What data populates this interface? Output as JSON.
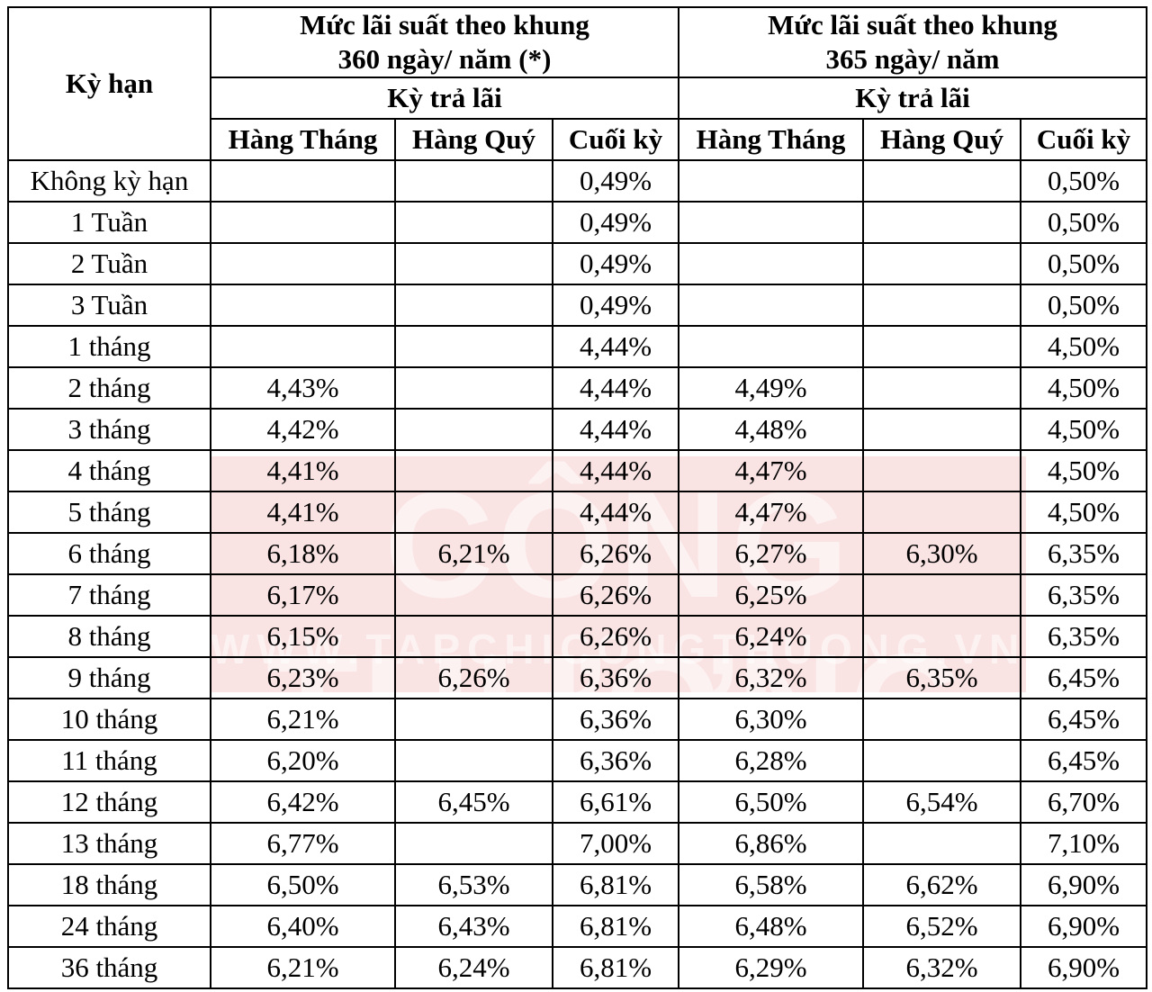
{
  "header": {
    "term": "Kỳ hạn",
    "group_360_line1": "Mức lãi suất theo khung",
    "group_360_line2": "360 ngày/ năm (*)",
    "group_365_line1": "Mức lãi suất theo khung",
    "group_365_line2": "365 ngày/ năm",
    "payment_period": "Kỳ trả lãi",
    "columns": [
      "Hàng Tháng",
      "Hàng Quý",
      "Cuối kỳ",
      "Hàng Tháng",
      "Hàng Quý",
      "Cuối kỳ"
    ]
  },
  "watermark": {
    "brand": "CÔNG THƯƠNG",
    "site": "WWW.TAPCHICONGTHUONG.VN"
  },
  "rows": [
    {
      "term": "Không kỳ hạn",
      "cells": [
        "",
        "",
        "0,49%",
        "",
        "",
        "0,50%"
      ]
    },
    {
      "term": "1 Tuần",
      "cells": [
        "",
        "",
        "0,49%",
        "",
        "",
        "0,50%"
      ]
    },
    {
      "term": "2 Tuần",
      "cells": [
        "",
        "",
        "0,49%",
        "",
        "",
        "0,50%"
      ]
    },
    {
      "term": "3 Tuần",
      "cells": [
        "",
        "",
        "0,49%",
        "",
        "",
        "0,50%"
      ]
    },
    {
      "term": "1 tháng",
      "cells": [
        "",
        "",
        "4,44%",
        "",
        "",
        "4,50%"
      ]
    },
    {
      "term": "2 tháng",
      "cells": [
        "4,43%",
        "",
        "4,44%",
        "4,49%",
        "",
        "4,50%"
      ]
    },
    {
      "term": "3 tháng",
      "cells": [
        "4,42%",
        "",
        "4,44%",
        "4,48%",
        "",
        "4,50%"
      ]
    },
    {
      "term": "4 tháng",
      "cells": [
        "4,41%",
        "",
        "4,44%",
        "4,47%",
        "",
        "4,50%"
      ]
    },
    {
      "term": "5 tháng",
      "cells": [
        "4,41%",
        "",
        "4,44%",
        "4,47%",
        "",
        "4,50%"
      ]
    },
    {
      "term": "6 tháng",
      "cells": [
        "6,18%",
        "6,21%",
        "6,26%",
        "6,27%",
        "6,30%",
        "6,35%"
      ]
    },
    {
      "term": "7 tháng",
      "cells": [
        "6,17%",
        "",
        "6,26%",
        "6,25%",
        "",
        "6,35%"
      ]
    },
    {
      "term": "8 tháng",
      "cells": [
        "6,15%",
        "",
        "6,26%",
        "6,24%",
        "",
        "6,35%"
      ]
    },
    {
      "term": "9 tháng",
      "cells": [
        "6,23%",
        "6,26%",
        "6,36%",
        "6,32%",
        "6,35%",
        "6,45%"
      ]
    },
    {
      "term": "10 tháng",
      "cells": [
        "6,21%",
        "",
        "6,36%",
        "6,30%",
        "",
        "6,45%"
      ]
    },
    {
      "term": "11 tháng",
      "cells": [
        "6,20%",
        "",
        "6,36%",
        "6,28%",
        "",
        "6,45%"
      ]
    },
    {
      "term": "12 tháng",
      "cells": [
        "6,42%",
        "6,45%",
        "6,61%",
        "6,50%",
        "6,54%",
        "6,70%"
      ]
    },
    {
      "term": "13 tháng",
      "cells": [
        "6,77%",
        "",
        "7,00%",
        "6,86%",
        "",
        "7,10%"
      ]
    },
    {
      "term": "18 tháng",
      "cells": [
        "6,50%",
        "6,53%",
        "6,81%",
        "6,58%",
        "6,62%",
        "6,90%"
      ]
    },
    {
      "term": "24 tháng",
      "cells": [
        "6,40%",
        "6,43%",
        "6,81%",
        "6,48%",
        "6,52%",
        "6,90%"
      ]
    },
    {
      "term": "36 tháng",
      "cells": [
        "6,21%",
        "6,24%",
        "6,81%",
        "6,29%",
        "6,32%",
        "6,90%"
      ]
    }
  ]
}
